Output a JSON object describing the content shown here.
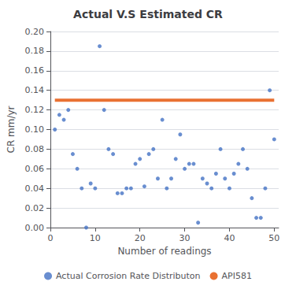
{
  "chart_data": {
    "type": "scatter",
    "title": "Actual V.S Estimated CR",
    "xlabel": "Number of readings",
    "ylabel": "CR mm/yr",
    "xlim": [
      0,
      51
    ],
    "xticks": [
      0,
      10,
      20,
      30,
      40,
      50
    ],
    "ylim": [
      0,
      0.2
    ],
    "yticks": [
      {
        "value": 0,
        "label": "0.00"
      },
      0.02,
      0.04,
      0.06,
      0.08,
      {
        "value": 0.1,
        "label": "0.10"
      },
      0.12,
      0.14,
      0.16,
      0.18,
      {
        "value": 0.2,
        "label": "0.20"
      }
    ],
    "grid": true,
    "legend": "bottom",
    "series": [
      {
        "name": "Actual Corrosion Rate Distributon",
        "type": "scatter",
        "marker": "o",
        "color": "#4472C4",
        "x": [
          1,
          2,
          3,
          4,
          5,
          6,
          7,
          8,
          9,
          10,
          11,
          12,
          13,
          14,
          15,
          16,
          17,
          18,
          19,
          20,
          21,
          22,
          23,
          24,
          25,
          26,
          27,
          28,
          29,
          30,
          31,
          32,
          33,
          34,
          35,
          36,
          37,
          38,
          39,
          40,
          41,
          42,
          43,
          44,
          45,
          46,
          47,
          48,
          49,
          50
        ],
        "values": [
          0.1,
          0.115,
          0.11,
          0.12,
          0.075,
          0.06,
          0.04,
          0.0,
          0.045,
          0.04,
          0.185,
          0.12,
          0.08,
          0.075,
          0.035,
          0.035,
          0.04,
          0.04,
          0.065,
          0.07,
          0.042,
          0.075,
          0.08,
          0.05,
          0.11,
          0.04,
          0.05,
          0.07,
          0.095,
          0.06,
          0.065,
          0.065,
          0.005,
          0.05,
          0.045,
          0.04,
          0.055,
          0.08,
          0.05,
          0.04,
          0.055,
          0.065,
          0.08,
          0.06,
          0.03,
          0.01,
          0.01,
          0.04,
          0.14,
          0.09
        ]
      },
      {
        "name": "API581",
        "type": "line",
        "line_style": "solid",
        "color": "#E97132",
        "x": [
          1,
          50
        ],
        "values": [
          0.13,
          0.13
        ]
      }
    ]
  }
}
